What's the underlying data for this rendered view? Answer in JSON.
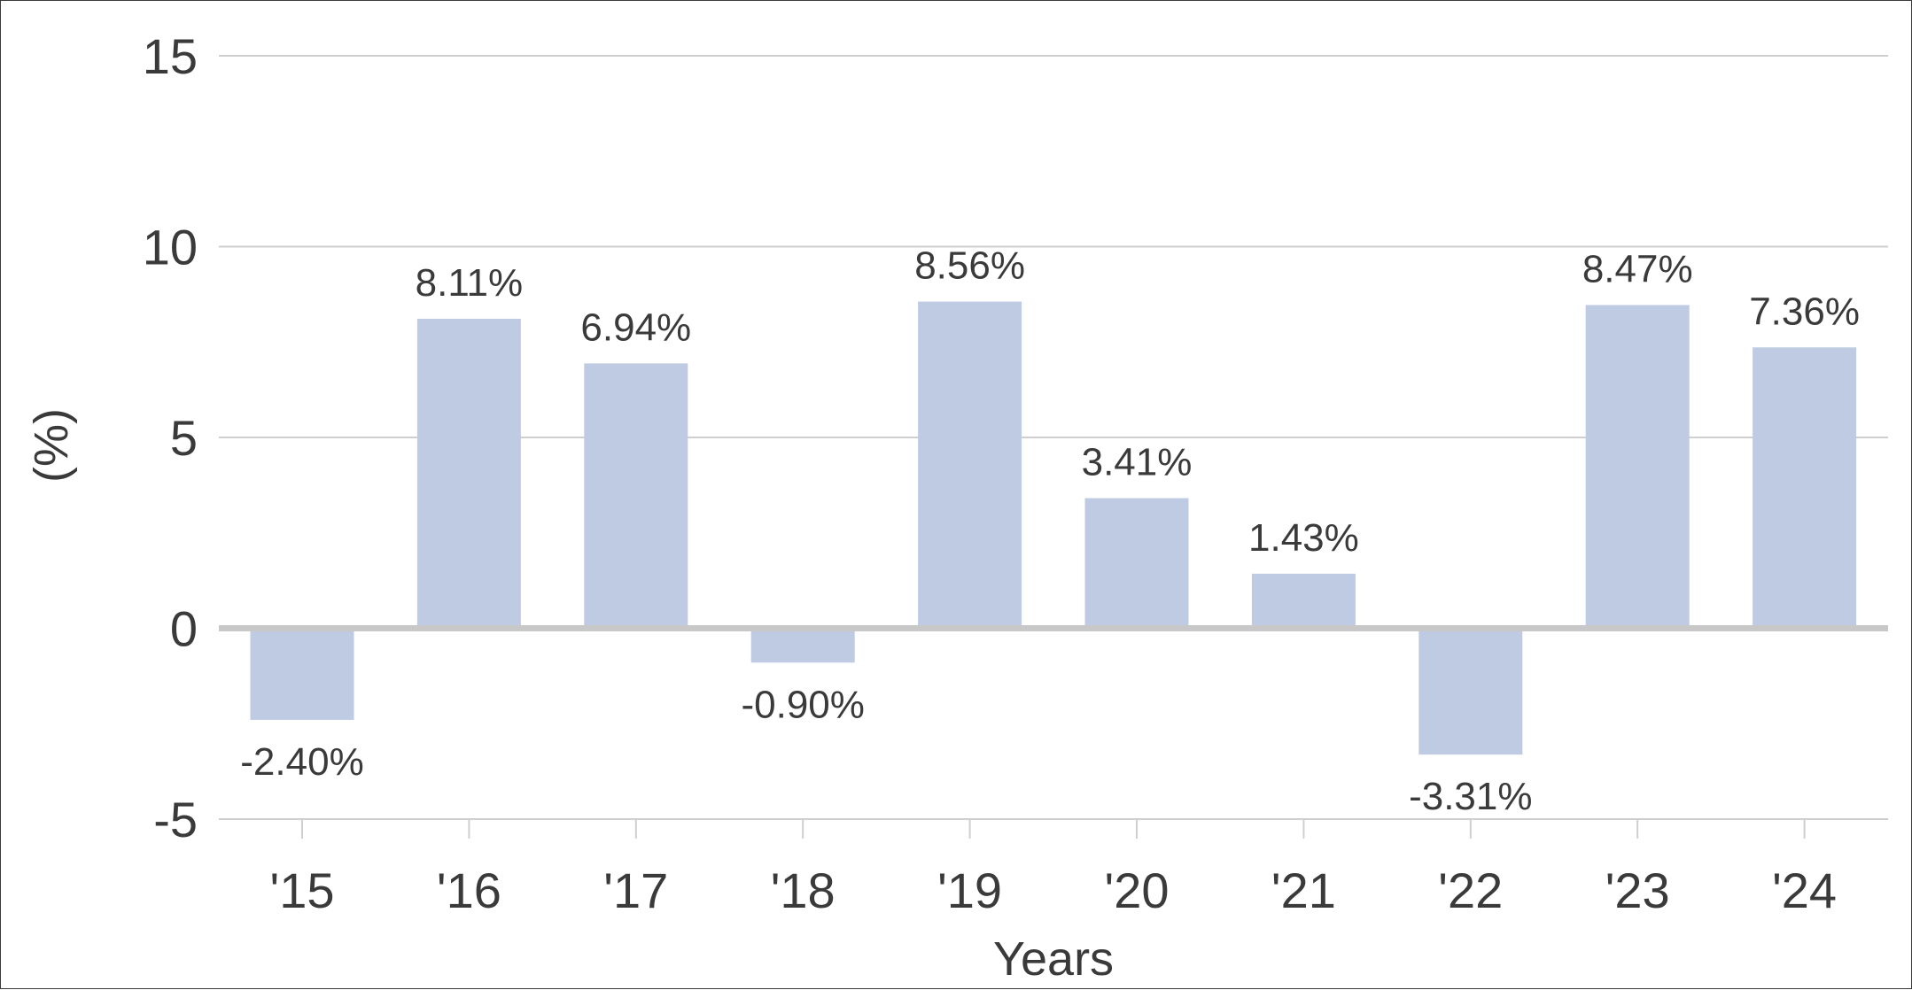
{
  "chart_data": {
    "type": "bar",
    "categories": [
      "'15",
      "'16",
      "'17",
      "'18",
      "'19",
      "'20",
      "'21",
      "'22",
      "'23",
      "'24"
    ],
    "values": [
      -2.4,
      8.11,
      6.94,
      -0.9,
      8.56,
      3.41,
      1.43,
      -3.31,
      8.47,
      7.36
    ],
    "data_labels": [
      "-2.40%",
      "8.11%",
      "6.94%",
      "-0.90%",
      "8.56%",
      "3.41%",
      "1.43%",
      "-3.31%",
      "8.47%",
      "7.36%"
    ],
    "y_ticks": [
      "15",
      "10",
      "5",
      "0",
      "-5"
    ],
    "xlabel": "Years",
    "ylabel": "(%)",
    "ylim": [
      -5,
      15
    ],
    "grid": true,
    "colors": {
      "bar": "#bfcbe3",
      "grid": "#cfcfcf",
      "zero_line": "#c8c8c8",
      "text": "#3a3a3a"
    }
  }
}
